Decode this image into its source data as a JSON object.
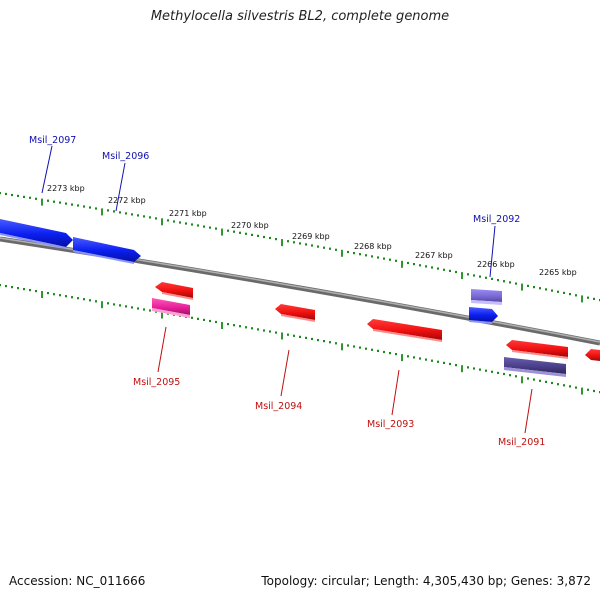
{
  "title": "Methylocella silvestris BL2, complete genome",
  "footer": {
    "accession": "Accession: NC_011666",
    "summary": "Topology: circular; Length: 4,305,430 bp; Genes: 3,872"
  },
  "colors": {
    "forward_gene": "#0a1ef0",
    "reverse_gene": "#f01010",
    "pink_gene": "#e8209a",
    "lavender_gene": "#7a6ad8",
    "navy_gene": "#4a3f8a",
    "backbone": "#808080",
    "ticks": "#1a8a1a",
    "forward_label": "#1010b0",
    "reverse_label": "#c01010"
  },
  "ticks": [
    {
      "label": "2273 kbp"
    },
    {
      "label": "2272 kbp"
    },
    {
      "label": "2271 kbp"
    },
    {
      "label": "2270 kbp"
    },
    {
      "label": "2269 kbp"
    },
    {
      "label": "2268 kbp"
    },
    {
      "label": "2267 kbp"
    },
    {
      "label": "2266 kbp"
    },
    {
      "label": "2265 kbp"
    }
  ],
  "gene_labels": {
    "msil_2097": "Msil_2097",
    "msil_2096": "Msil_2096",
    "msil_2092": "Msil_2092",
    "msil_2095": "Msil_2095",
    "msil_2094": "Msil_2094",
    "msil_2093": "Msil_2093",
    "msil_2091": "Msil_2091"
  }
}
